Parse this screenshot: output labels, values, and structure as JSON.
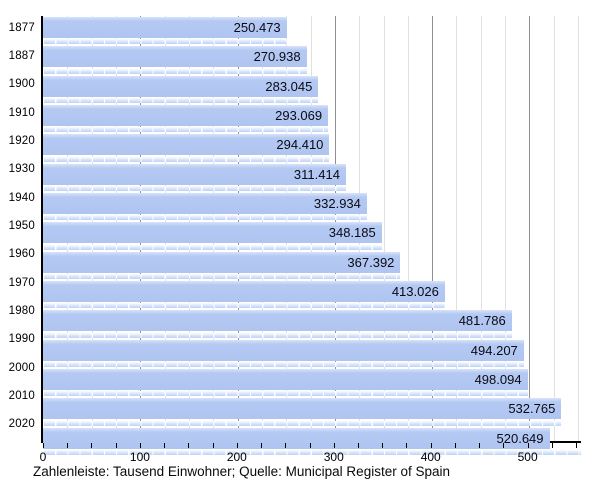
{
  "chart_data": {
    "type": "bar",
    "orientation": "horizontal",
    "title": "",
    "xlabel": "",
    "ylabel": "",
    "unit": "Tausend Einwohner",
    "categories": [
      "1877",
      "1887",
      "1900",
      "1910",
      "1920",
      "1930",
      "1940",
      "1950",
      "1960",
      "1970",
      "1980",
      "1990",
      "2000",
      "2010",
      "2020"
    ],
    "values": [
      250.473,
      270.938,
      283.045,
      293.069,
      294.41,
      311.414,
      332.934,
      348.185,
      367.392,
      413.026,
      481.786,
      494.207,
      498.094,
      532.765,
      520.649
    ],
    "value_labels": [
      "250.473",
      "270.938",
      "283.045",
      "293.069",
      "294.410",
      "311.414",
      "332.934",
      "348.185",
      "367.392",
      "413.026",
      "481.786",
      "494.207",
      "498.094",
      "532.765",
      "520.649"
    ],
    "xlim": [
      0,
      553
    ],
    "x_major_ticks": [
      0,
      100,
      200,
      300,
      400,
      500
    ],
    "x_minor_step": 25,
    "grid": true,
    "legend": "none"
  },
  "caption": "Zahlenleiste: Tausend Einwohner; Quelle: Municipal Register of Spain",
  "colors": {
    "bar_fill": "#b1c6f1",
    "bar_top_highlight": "#d8e2fa",
    "strip_fill": "#c9daf8",
    "grid_minor": "#e0e0e0",
    "grid_major": "#909090",
    "axis": "#000000",
    "text": "#000000",
    "background": "#ffffff"
  }
}
